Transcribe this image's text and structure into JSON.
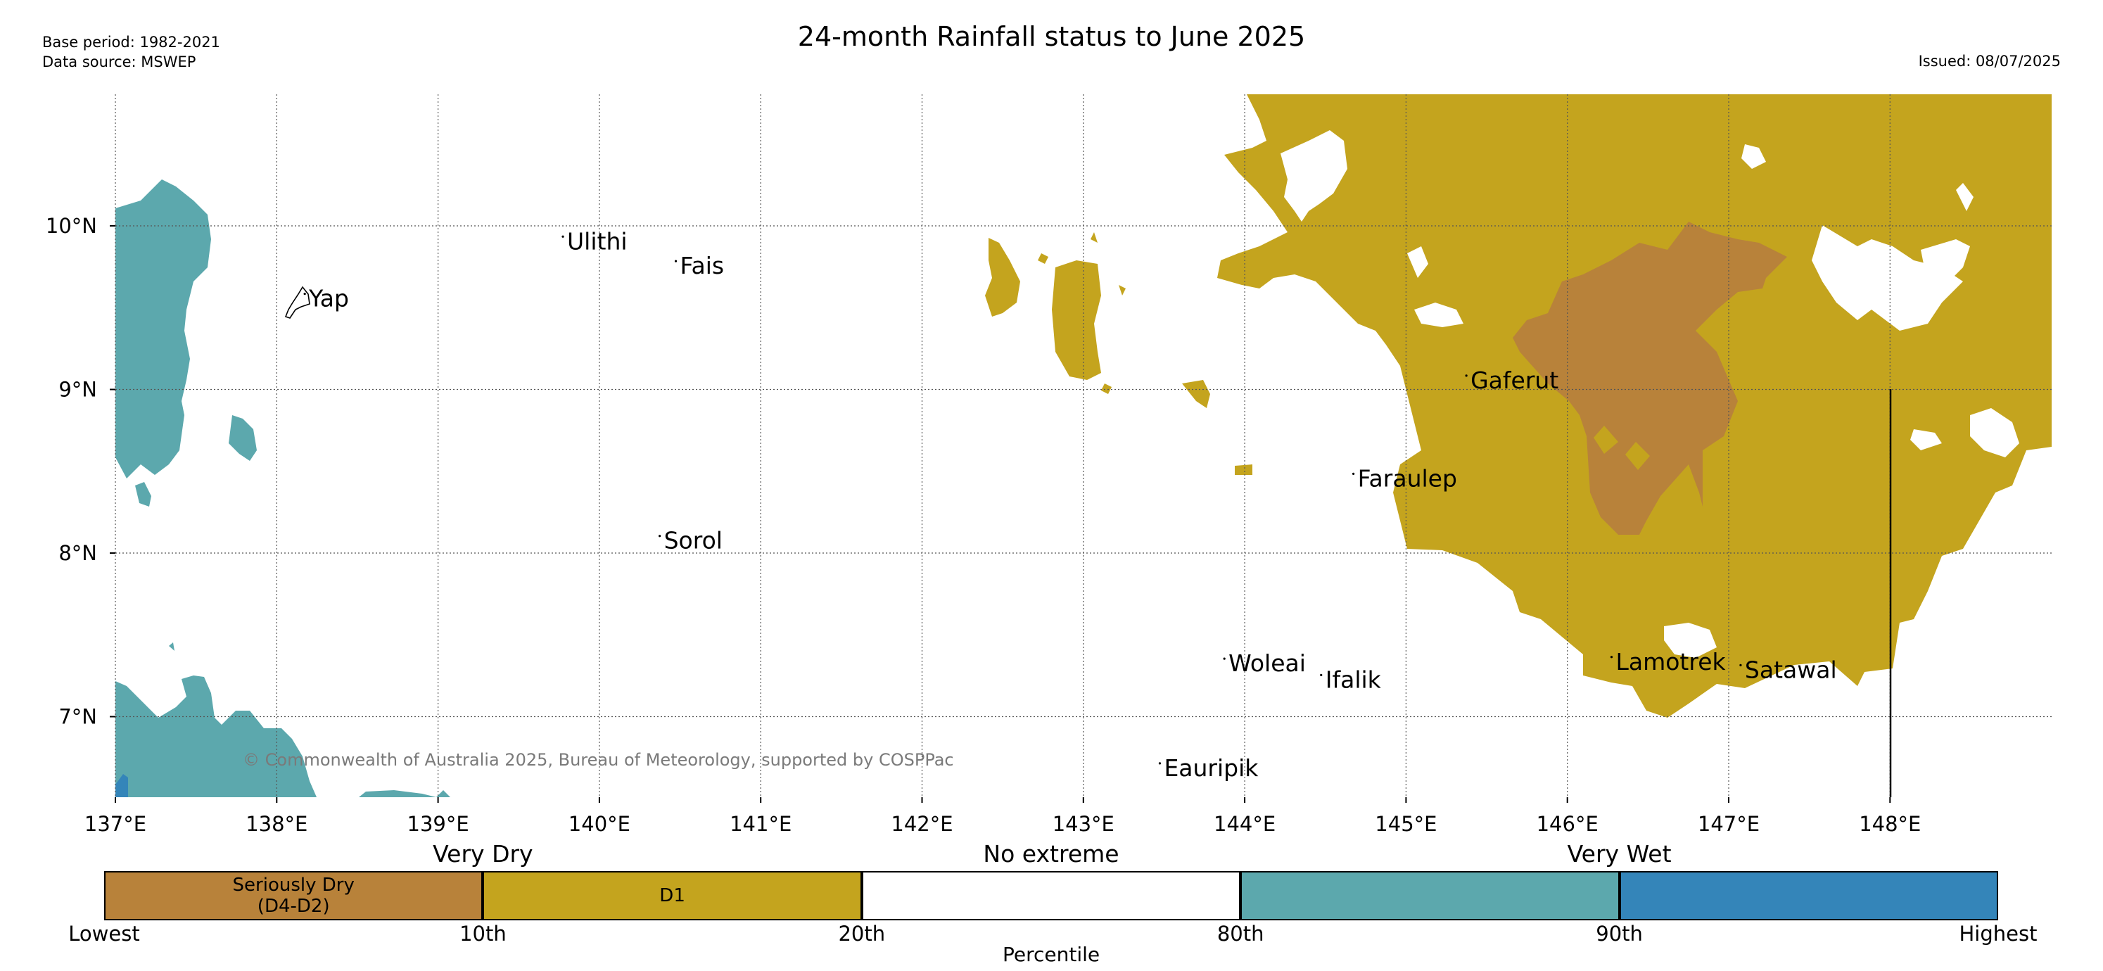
{
  "title": "24-month Rainfall status to June 2025",
  "base_period": "Base period: 1982-2021",
  "data_source": "Data source: MSWEP",
  "issued": "Issued: 08/07/2025",
  "copyright": "© Commonwealth of Australia 2025, Bureau of Meteorology, supported by COSPPac",
  "colors": {
    "seriously_dry": "#b8823a",
    "d1": "#c4a41e",
    "no_extreme": "#ffffff",
    "very_wet_80_90": "#5ca8ad",
    "very_wet_90_high": "#3485b9"
  },
  "map": {
    "lon_range": [
      137,
      149
    ],
    "lat_range": [
      6.5,
      10.8
    ],
    "lon_ticks": [
      "137°E",
      "138°E",
      "139°E",
      "140°E",
      "141°E",
      "142°E",
      "143°E",
      "144°E",
      "145°E",
      "146°E",
      "147°E",
      "148°E"
    ],
    "lat_ticks": [
      "10°N",
      "9°N",
      "8°N",
      "7°N"
    ],
    "places": [
      {
        "name": "Ulithi",
        "lon": 139.8,
        "lat": 9.9
      },
      {
        "name": "Fais",
        "lon": 140.5,
        "lat": 9.75
      },
      {
        "name": "Yap",
        "lon": 138.2,
        "lat": 9.55
      },
      {
        "name": "Gaferut",
        "lon": 145.4,
        "lat": 9.05
      },
      {
        "name": "Faraulep",
        "lon": 144.7,
        "lat": 8.45
      },
      {
        "name": "Sorol",
        "lon": 140.4,
        "lat": 8.07
      },
      {
        "name": "Woleai",
        "lon": 143.9,
        "lat": 7.32
      },
      {
        "name": "Ifalik",
        "lon": 144.5,
        "lat": 7.22
      },
      {
        "name": "Lamotrek",
        "lon": 146.3,
        "lat": 7.33
      },
      {
        "name": "Satawal",
        "lon": 147.1,
        "lat": 7.28
      },
      {
        "name": "Eauripik",
        "lon": 143.5,
        "lat": 6.68
      }
    ]
  },
  "legend": {
    "group_labels": [
      "Very Dry",
      "No extreme",
      "Very Wet"
    ],
    "boxes": [
      {
        "label_line1": "Seriously Dry",
        "label_line2": "(D4-D2)",
        "color": "#b8823a"
      },
      {
        "label_line1": "D1",
        "label_line2": "",
        "color": "#c4a41e"
      },
      {
        "label_line1": "",
        "label_line2": "",
        "color": "#ffffff"
      },
      {
        "label_line1": "",
        "label_line2": "",
        "color": "#5ca8ad"
      },
      {
        "label_line1": "",
        "label_line2": "",
        "color": "#3485b9"
      }
    ],
    "ticks": [
      "Lowest",
      "10th",
      "20th",
      "80th",
      "90th",
      "Highest"
    ],
    "axis_label": "Percentile"
  }
}
